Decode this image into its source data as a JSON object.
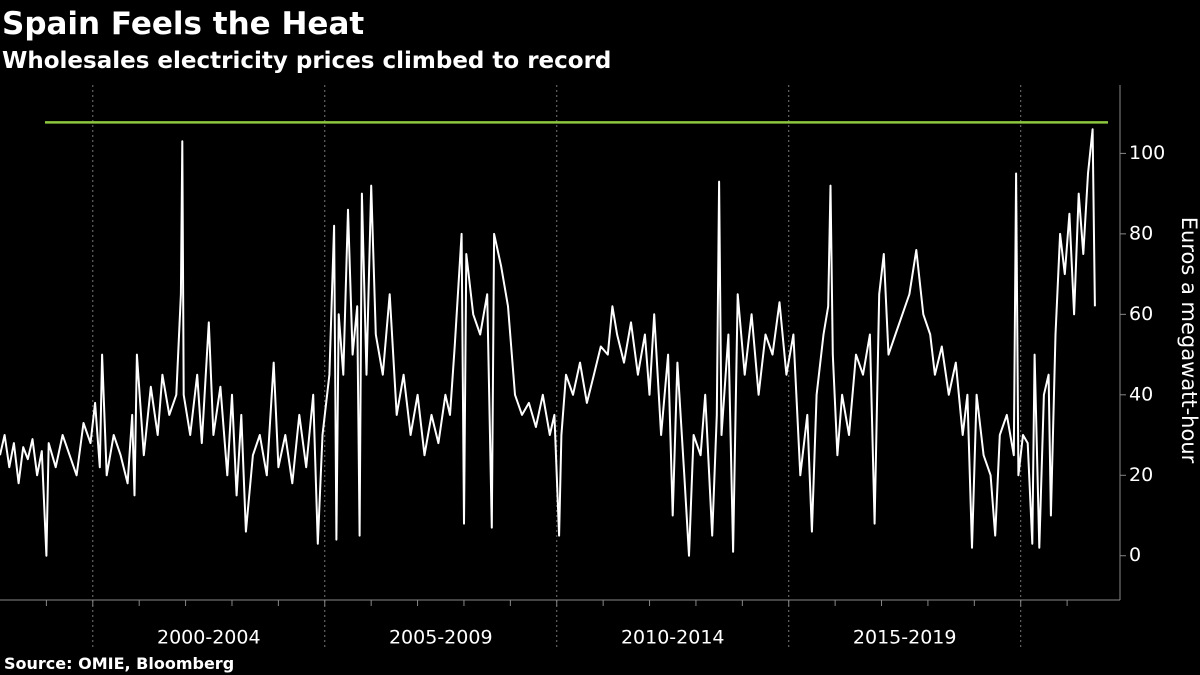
{
  "chart_data": {
    "type": "line",
    "title": "Spain Feels the Heat",
    "subtitle": "Wholesales electricity prices climbed to record",
    "y_axis_label": "Euros a megawatt-hour",
    "source": "Source: OMIE, Bloomberg",
    "xlim": [
      1998,
      2022.14
    ],
    "ylim": [
      -11,
      117
    ],
    "yticks": [
      0,
      20,
      40,
      60,
      80,
      100
    ],
    "xticks": [
      {
        "value": 2002.5,
        "label": "2000-2004"
      },
      {
        "value": 2007.5,
        "label": "2005-2009"
      },
      {
        "value": 2012.5,
        "label": "2010-2014"
      },
      {
        "value": 2017.5,
        "label": "2015-2019"
      }
    ],
    "xgrid": [
      2000,
      2005,
      2010,
      2015,
      2020
    ],
    "xminor": [
      1999,
      2000,
      2001,
      2002,
      2003,
      2004,
      2005,
      2006,
      2007,
      2008,
      2009,
      2010,
      2011,
      2012,
      2013,
      2014,
      2015,
      2016,
      2017,
      2018,
      2019,
      2020,
      2021
    ],
    "reference_line": {
      "value": 107.7,
      "color": "#8dc63f"
    },
    "series": [
      {
        "color": "#ffffff",
        "x": [
          1998.0,
          1998.1,
          1998.2,
          1998.3,
          1998.4,
          1998.5,
          1998.6,
          1998.7,
          1998.8,
          1998.9,
          1999.0,
          1999.05,
          1999.2,
          1999.35,
          1999.5,
          1999.65,
          1999.8,
          1999.95,
          2000.05,
          2000.15,
          2000.2,
          2000.3,
          2000.45,
          2000.6,
          2000.75,
          2000.85,
          2000.9,
          2000.95,
          2001.1,
          2001.25,
          2001.4,
          2001.5,
          2001.65,
          2001.8,
          2001.9,
          2001.93,
          2001.96,
          2002.1,
          2002.25,
          2002.35,
          2002.5,
          2002.6,
          2002.75,
          2002.9,
          2003.0,
          2003.1,
          2003.2,
          2003.3,
          2003.45,
          2003.6,
          2003.75,
          2003.9,
          2004.0,
          2004.15,
          2004.3,
          2004.45,
          2004.6,
          2004.75,
          2004.85,
          2004.95,
          2005.1,
          2005.2,
          2005.25,
          2005.3,
          2005.4,
          2005.5,
          2005.6,
          2005.7,
          2005.75,
          2005.8,
          2005.9,
          2006.0,
          2006.1,
          2006.25,
          2006.4,
          2006.55,
          2006.7,
          2006.85,
          2007.0,
          2007.15,
          2007.3,
          2007.45,
          2007.6,
          2007.7,
          2007.8,
          2007.95,
          2008.0,
          2008.05,
          2008.2,
          2008.35,
          2008.5,
          2008.6,
          2008.65,
          2008.8,
          2008.95,
          2009.1,
          2009.25,
          2009.4,
          2009.55,
          2009.7,
          2009.85,
          2009.95,
          2010.05,
          2010.1,
          2010.2,
          2010.35,
          2010.5,
          2010.65,
          2010.8,
          2010.95,
          2011.1,
          2011.2,
          2011.3,
          2011.45,
          2011.6,
          2011.75,
          2011.9,
          2012.0,
          2012.1,
          2012.25,
          2012.4,
          2012.5,
          2012.6,
          2012.75,
          2012.85,
          2012.95,
          2013.1,
          2013.2,
          2013.35,
          2013.45,
          2013.5,
          2013.55,
          2013.7,
          2013.8,
          2013.9,
          2014.05,
          2014.2,
          2014.35,
          2014.5,
          2014.65,
          2014.8,
          2014.95,
          2015.1,
          2015.25,
          2015.4,
          2015.5,
          2015.6,
          2015.75,
          2015.85,
          2015.9,
          2015.95,
          2016.05,
          2016.15,
          2016.3,
          2016.45,
          2016.6,
          2016.75,
          2016.85,
          2016.95,
          2017.05,
          2017.15,
          2017.3,
          2017.45,
          2017.6,
          2017.75,
          2017.9,
          2018.05,
          2018.15,
          2018.3,
          2018.45,
          2018.6,
          2018.75,
          2018.85,
          2018.95,
          2019.05,
          2019.2,
          2019.35,
          2019.45,
          2019.55,
          2019.7,
          2019.85,
          2019.9,
          2019.95,
          2020.05,
          2020.15,
          2020.25,
          2020.3,
          2020.4,
          2020.5,
          2020.6,
          2020.65,
          2020.75,
          2020.85,
          2020.95,
          2021.05,
          2021.15,
          2021.25,
          2021.35,
          2021.45,
          2021.55,
          2021.6
        ],
        "values": [
          25,
          30,
          22,
          28,
          18,
          27,
          24,
          29,
          20,
          26,
          0,
          28,
          22,
          30,
          25,
          20,
          33,
          28,
          38,
          22,
          50,
          20,
          30,
          25,
          18,
          35,
          15,
          50,
          25,
          42,
          30,
          45,
          35,
          40,
          65,
          103,
          40,
          30,
          45,
          28,
          58,
          30,
          42,
          20,
          40,
          15,
          35,
          6,
          25,
          30,
          20,
          48,
          22,
          30,
          18,
          35,
          22,
          40,
          3,
          30,
          45,
          82,
          4,
          60,
          45,
          86,
          50,
          62,
          5,
          90,
          45,
          92,
          55,
          45,
          65,
          35,
          45,
          30,
          40,
          25,
          35,
          28,
          40,
          35,
          52,
          80,
          8,
          75,
          60,
          55,
          65,
          7,
          80,
          72,
          62,
          40,
          35,
          38,
          32,
          40,
          30,
          35,
          5,
          30,
          45,
          40,
          48,
          38,
          45,
          52,
          50,
          62,
          55,
          48,
          58,
          45,
          55,
          40,
          60,
          30,
          50,
          10,
          48,
          20,
          0,
          30,
          25,
          40,
          5,
          35,
          93,
          30,
          55,
          1,
          65,
          45,
          60,
          40,
          55,
          50,
          63,
          45,
          55,
          20,
          35,
          6,
          40,
          55,
          62,
          92,
          50,
          25,
          40,
          30,
          50,
          45,
          55,
          8,
          65,
          75,
          50,
          55,
          60,
          65,
          76,
          60,
          55,
          45,
          52,
          40,
          48,
          30,
          40,
          2,
          40,
          25,
          20,
          5,
          30,
          35,
          25,
          95,
          20,
          30,
          28,
          3,
          50,
          2,
          40,
          45,
          10,
          55,
          80,
          70,
          85,
          60,
          90,
          75,
          95,
          106,
          62
        ]
      }
    ]
  }
}
